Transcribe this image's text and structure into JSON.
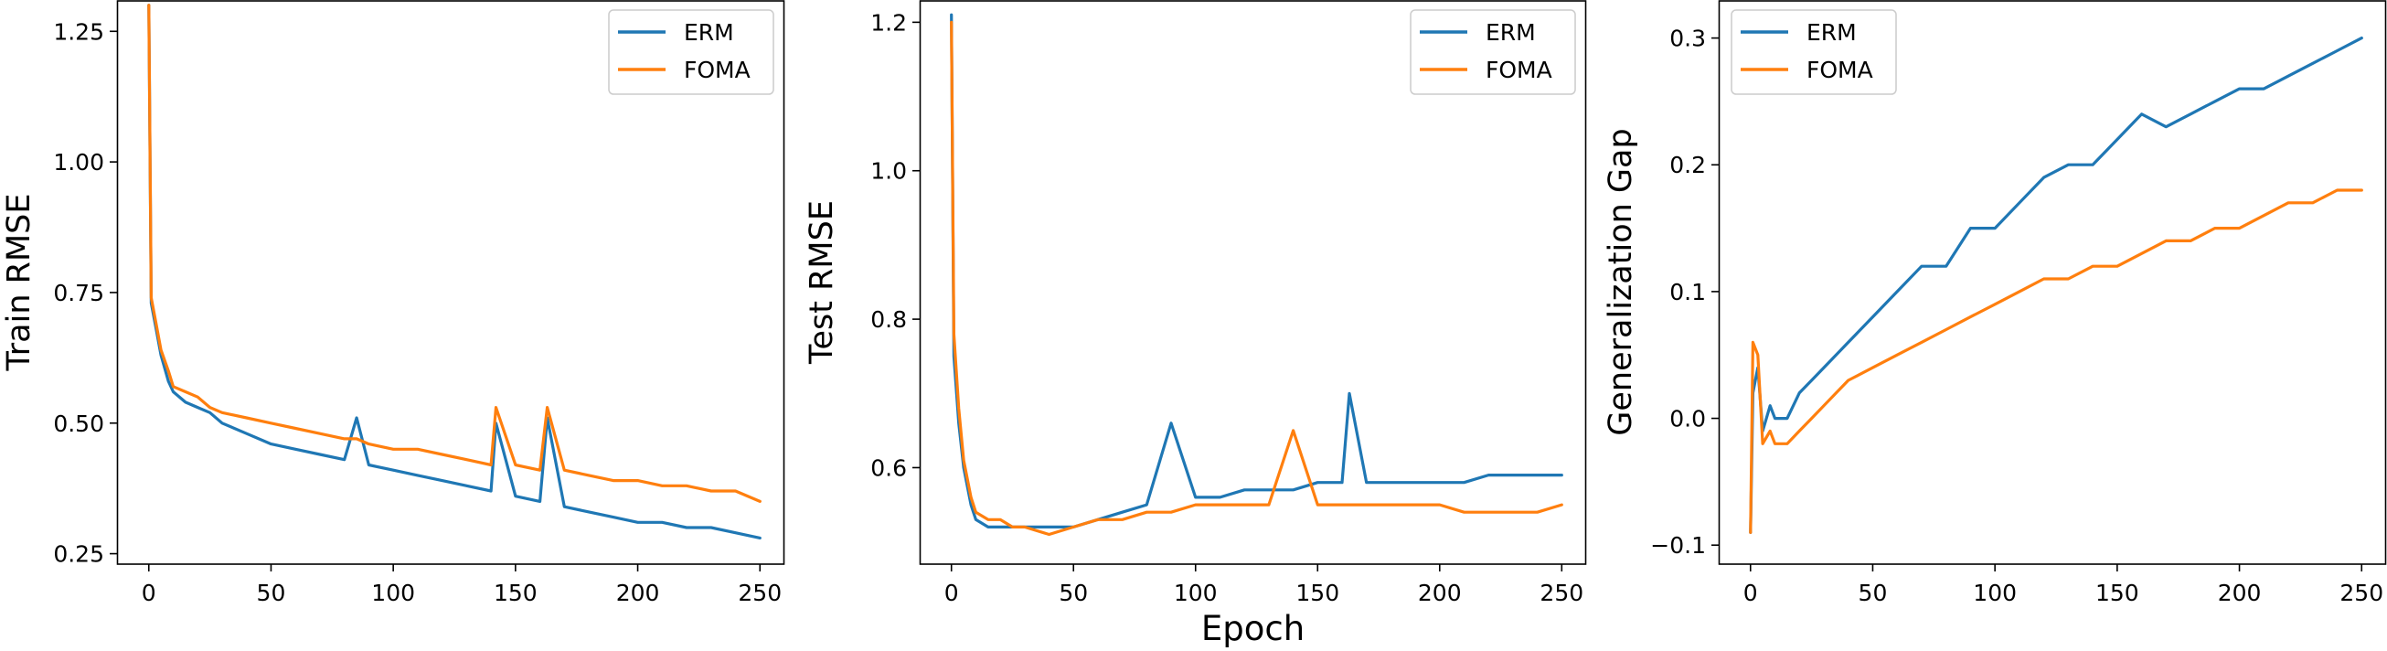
{
  "colors": {
    "ERM": "#1f77b4",
    "FOMA": "#ff7f0e",
    "axis": "#000000",
    "legend_border": "#cccccc"
  },
  "chart_data": [
    {
      "type": "line",
      "title": "",
      "xlabel": "",
      "ylabel": "Train RMSE",
      "xlim": [
        -13,
        260
      ],
      "ylim": [
        0.23,
        1.31
      ],
      "xticks": [
        0,
        50,
        100,
        150,
        200,
        250
      ],
      "yticks": [
        0.25,
        0.5,
        0.75,
        1.0,
        1.25
      ],
      "ytick_labels": [
        "0.25",
        "0.50",
        "0.75",
        "1.00",
        "1.25"
      ],
      "grid": false,
      "legend": "top-right",
      "x": [
        0,
        1,
        3,
        5,
        8,
        10,
        15,
        20,
        25,
        30,
        40,
        50,
        60,
        70,
        80,
        85,
        90,
        100,
        110,
        120,
        130,
        140,
        142,
        150,
        160,
        163,
        170,
        180,
        190,
        200,
        210,
        220,
        230,
        240,
        250
      ],
      "series": [
        {
          "name": "ERM",
          "values": [
            1.3,
            0.73,
            0.68,
            0.63,
            0.58,
            0.56,
            0.54,
            0.53,
            0.52,
            0.5,
            0.48,
            0.46,
            0.45,
            0.44,
            0.43,
            0.51,
            0.42,
            0.41,
            0.4,
            0.39,
            0.38,
            0.37,
            0.5,
            0.36,
            0.35,
            0.51,
            0.34,
            0.33,
            0.32,
            0.31,
            0.31,
            0.3,
            0.3,
            0.29,
            0.28
          ]
        },
        {
          "name": "FOMA",
          "values": [
            1.3,
            0.74,
            0.69,
            0.64,
            0.6,
            0.57,
            0.56,
            0.55,
            0.53,
            0.52,
            0.51,
            0.5,
            0.49,
            0.48,
            0.47,
            0.47,
            0.46,
            0.45,
            0.45,
            0.44,
            0.43,
            0.42,
            0.53,
            0.42,
            0.41,
            0.53,
            0.41,
            0.4,
            0.39,
            0.39,
            0.38,
            0.38,
            0.37,
            0.37,
            0.35
          ]
        }
      ]
    },
    {
      "type": "line",
      "title": "",
      "xlabel": "Epoch",
      "ylabel": "Test RMSE",
      "xlim": [
        -13,
        260
      ],
      "ylim": [
        0.47,
        1.23
      ],
      "xticks": [
        0,
        50,
        100,
        150,
        200,
        250
      ],
      "yticks": [
        0.6,
        0.8,
        1.0,
        1.2
      ],
      "ytick_labels": [
        "0.6",
        "0.8",
        "1.0",
        "1.2"
      ],
      "grid": false,
      "legend": "top-right",
      "x": [
        0,
        1,
        3,
        5,
        8,
        10,
        15,
        20,
        25,
        30,
        40,
        50,
        60,
        70,
        80,
        90,
        100,
        110,
        120,
        130,
        140,
        150,
        160,
        163,
        170,
        180,
        190,
        200,
        210,
        220,
        230,
        240,
        250
      ],
      "series": [
        {
          "name": "ERM",
          "values": [
            1.21,
            0.75,
            0.66,
            0.6,
            0.55,
            0.53,
            0.52,
            0.52,
            0.52,
            0.52,
            0.52,
            0.52,
            0.53,
            0.54,
            0.55,
            0.66,
            0.56,
            0.56,
            0.57,
            0.57,
            0.57,
            0.58,
            0.58,
            0.7,
            0.58,
            0.58,
            0.58,
            0.58,
            0.58,
            0.59,
            0.59,
            0.59,
            0.59
          ]
        },
        {
          "name": "FOMA",
          "values": [
            1.2,
            0.78,
            0.68,
            0.61,
            0.56,
            0.54,
            0.53,
            0.53,
            0.52,
            0.52,
            0.51,
            0.52,
            0.53,
            0.53,
            0.54,
            0.54,
            0.55,
            0.55,
            0.55,
            0.55,
            0.65,
            0.55,
            0.55,
            0.55,
            0.55,
            0.55,
            0.55,
            0.55,
            0.54,
            0.54,
            0.54,
            0.54,
            0.55
          ]
        }
      ]
    },
    {
      "type": "line",
      "title": "",
      "xlabel": "",
      "ylabel": "Generalization Gap",
      "xlim": [
        -13,
        260
      ],
      "ylim": [
        -0.115,
        0.33
      ],
      "xticks": [
        0,
        50,
        100,
        150,
        200,
        250
      ],
      "yticks": [
        -0.1,
        0.0,
        0.1,
        0.2,
        0.3
      ],
      "ytick_labels": [
        "−0.1",
        "0.0",
        "0.1",
        "0.2",
        "0.3"
      ],
      "grid": false,
      "legend": "top-left",
      "x": [
        0,
        1,
        3,
        5,
        8,
        10,
        15,
        20,
        25,
        30,
        40,
        50,
        60,
        70,
        80,
        90,
        100,
        110,
        120,
        130,
        140,
        150,
        160,
        170,
        180,
        190,
        200,
        210,
        220,
        230,
        240,
        250
      ],
      "series": [
        {
          "name": "ERM",
          "values": [
            -0.09,
            0.02,
            0.04,
            -0.01,
            0.01,
            0.0,
            0.0,
            0.02,
            0.03,
            0.04,
            0.06,
            0.08,
            0.1,
            0.12,
            0.12,
            0.15,
            0.15,
            0.17,
            0.19,
            0.2,
            0.2,
            0.22,
            0.24,
            0.23,
            0.24,
            0.25,
            0.26,
            0.26,
            0.27,
            0.28,
            0.29,
            0.3
          ]
        },
        {
          "name": "FOMA",
          "values": [
            -0.09,
            0.06,
            0.05,
            -0.02,
            -0.01,
            -0.02,
            -0.02,
            -0.01,
            0.0,
            0.01,
            0.03,
            0.04,
            0.05,
            0.06,
            0.07,
            0.08,
            0.09,
            0.1,
            0.11,
            0.11,
            0.12,
            0.12,
            0.13,
            0.14,
            0.14,
            0.15,
            0.15,
            0.16,
            0.17,
            0.17,
            0.18,
            0.18
          ]
        }
      ]
    }
  ]
}
